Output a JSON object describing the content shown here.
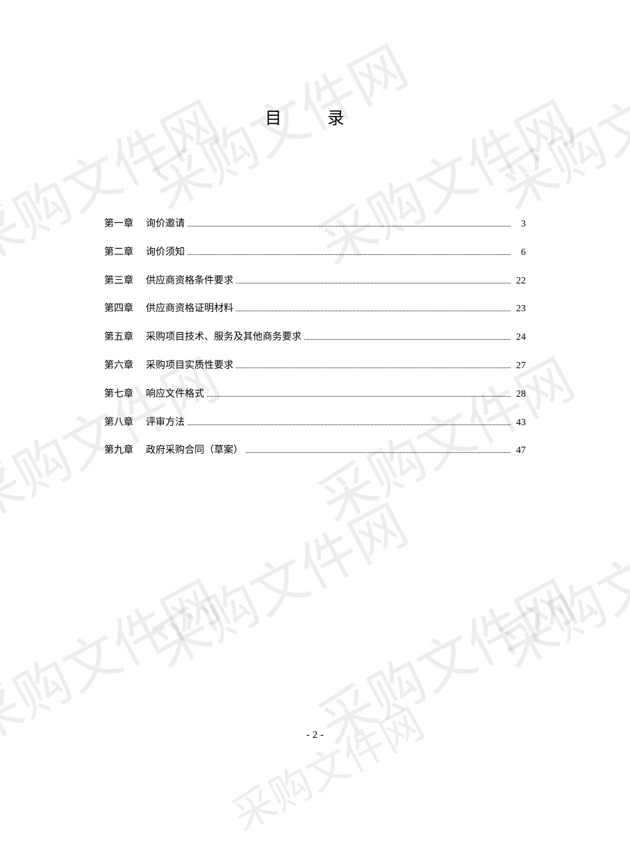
{
  "title": "目 录",
  "watermark_text": "采购文件网",
  "page_number": "- 2 -",
  "font": {
    "title_size_pt": 24,
    "body_size_pt": 14,
    "footer_size_pt": 15,
    "watermark_size_pt": 80,
    "watermark_color": "rgba(0,0,0,0.07)",
    "text_color": "#000000",
    "background_color": "#ffffff",
    "font_family_body": "SimSun",
    "font_family_watermark": "KaiTi"
  },
  "toc": [
    {
      "chapter": "第一章",
      "title": "询价邀请",
      "page": "3"
    },
    {
      "chapter": "第二章",
      "title": "询价须知",
      "page": "6"
    },
    {
      "chapter": "第三章",
      "title": "供应商资格条件要求",
      "page": "22"
    },
    {
      "chapter": "第四章",
      "title": "供应商资格证明材料",
      "page": "23"
    },
    {
      "chapter": "第五章",
      "title": "采购项目技术、服务及其他商务要求",
      "page": "24"
    },
    {
      "chapter": "第六章",
      "title": "采购项目实质性要求",
      "page": "27"
    },
    {
      "chapter": "第七章",
      "title": "响应文件格式",
      "page": "28"
    },
    {
      "chapter": "第八章",
      "title": "评审方法",
      "page": "43"
    },
    {
      "chapter": "第九章",
      "title": "政府采购合同（草案）",
      "page": "47"
    }
  ]
}
